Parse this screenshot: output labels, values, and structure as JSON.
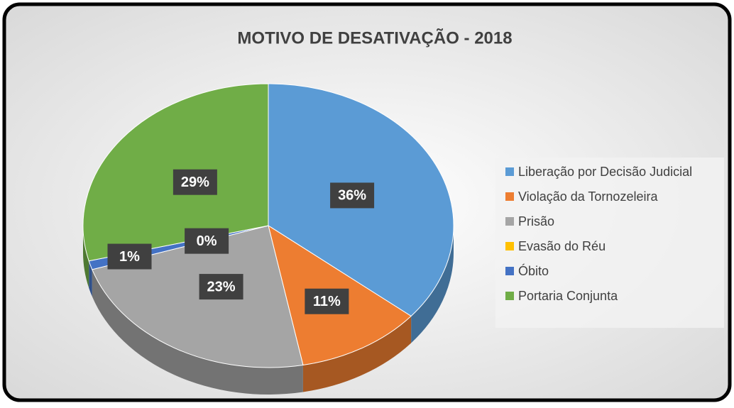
{
  "chart_data": {
    "type": "pie",
    "title": "MOTIVO DE DESATIVAÇÃO - 2018",
    "categories": [
      "Liberação por Decisão Judicial",
      "Violação da Tornozeleira",
      "Prisão",
      "Evasão do Réu",
      "Óbito",
      "Portaria Conjunta"
    ],
    "values": [
      36,
      11,
      23,
      0,
      1,
      29
    ],
    "value_labels": [
      "36%",
      "11%",
      "23%",
      "0%",
      "1%",
      "29%"
    ],
    "colors": [
      "#5b9bd5",
      "#ed7d31",
      "#a5a5a5",
      "#ffc000",
      "#4472c4",
      "#70ad47"
    ],
    "legend": "right"
  }
}
